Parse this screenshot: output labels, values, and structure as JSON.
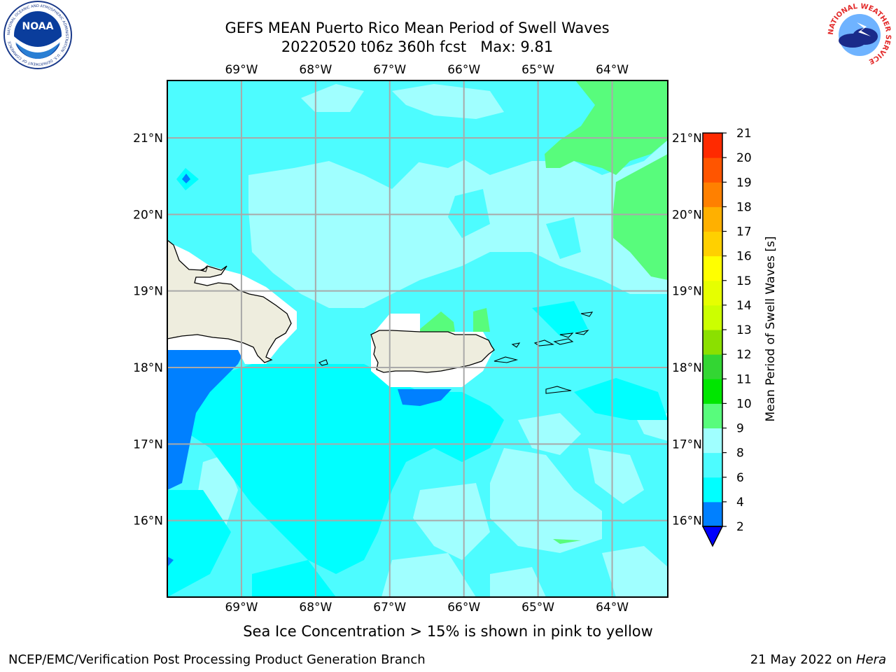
{
  "header": {
    "title": "GEFS MEAN Puerto Rico Mean Period of Swell Waves",
    "subtitle_run": "20220520 t06z 360h fcst",
    "subtitle_max": "Max: 9.81"
  },
  "map": {
    "lon_labels": [
      "69°W",
      "68°W",
      "67°W",
      "66°W",
      "65°W",
      "64°W"
    ],
    "lat_labels": [
      "21°N",
      "20°N",
      "19°N",
      "18°N",
      "17°N",
      "16°N"
    ],
    "lon_range": [
      -70.0,
      -63.25
    ],
    "lat_range": [
      15.0,
      21.75
    ]
  },
  "colorbar": {
    "label": "Mean Period of Swell Waves [s]",
    "tick_labels": [
      "2",
      "4",
      "6",
      "8",
      "9",
      "10",
      "11",
      "12",
      "13",
      "14",
      "15",
      "16",
      "17",
      "18",
      "19",
      "20",
      "21"
    ],
    "colors": [
      "#0033ff",
      "#0080ff",
      "#00ffff",
      "#4dfcff",
      "#a0ffff",
      "#58fc7c",
      "#00e600",
      "#33d633",
      "#8be000",
      "#ccff00",
      "#e6ff00",
      "#ffff00",
      "#ffd000",
      "#ffb000",
      "#ff8000",
      "#ff5500",
      "#ff2a00",
      "#ff0000"
    ],
    "under_color": "#0000ff"
  },
  "note": "Sea Ice Concentration > 15% is shown in pink to yellow",
  "footer": {
    "left": "NCEP/EMC/Verification Post Processing Product Generation Branch",
    "right_date": "21 May 2022 on",
    "right_host": "Hera"
  },
  "logos": {
    "noaa_text": "NOAA",
    "noaa_ring": "NATIONAL OCEANIC AND ATMOSPHERIC ADMINISTRATION · U.S. DEPARTMENT OF COMMERCE",
    "nws_ring": "NATIONAL WEATHER SERVICE"
  }
}
